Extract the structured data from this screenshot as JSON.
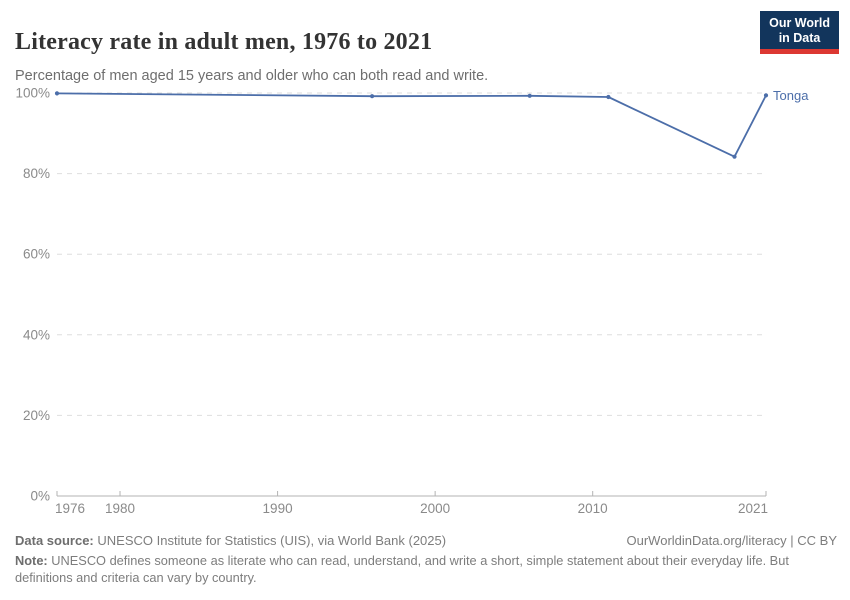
{
  "header": {
    "title": "Literacy rate in adult men, 1976 to 2021",
    "subtitle": "Percentage of men aged 15 years and older who can both read and write.",
    "logo": {
      "line1": "Our World",
      "line2": "in Data",
      "bg_color": "#12355c",
      "stripe_color": "#dc3832"
    }
  },
  "chart_data": {
    "type": "line",
    "title": "Literacy rate in adult men, 1976 to 2021",
    "xlabel": "",
    "ylabel": "",
    "xlim": [
      1976,
      2021
    ],
    "ylim": [
      0,
      100
    ],
    "x_ticks": [
      1976,
      1980,
      1990,
      2000,
      2010,
      2021
    ],
    "x_tick_labels": [
      "1976",
      "1980",
      "1990",
      "2000",
      "2010",
      "2021"
    ],
    "y_ticks": [
      0,
      20,
      40,
      60,
      80,
      100
    ],
    "y_tick_labels": [
      "0%",
      "20%",
      "40%",
      "60%",
      "80%",
      "100%"
    ],
    "grid": "dashed-horizontal",
    "legend_position": "end-of-line",
    "series": [
      {
        "name": "Tonga",
        "color": "#4c6ea9",
        "x": [
          1976,
          1996,
          2006,
          2011,
          2019,
          2021
        ],
        "values": [
          99.9,
          99.2,
          99.3,
          99.0,
          84.2,
          99.4
        ]
      }
    ]
  },
  "colors": {
    "gridline": "#dedede",
    "axis": "#b3b3b3",
    "tick_label": "#8a8a8a"
  },
  "footer": {
    "source_label": "Data source:",
    "source_text": "UNESCO Institute for Statistics (UIS), via World Bank (2025)",
    "link_text": "OurWorldinData.org/literacy | CC BY",
    "note_label": "Note:",
    "note_text": "UNESCO defines someone as literate who can read, understand, and write a short, simple statement about their everyday life. But definitions and criteria can vary by country."
  }
}
